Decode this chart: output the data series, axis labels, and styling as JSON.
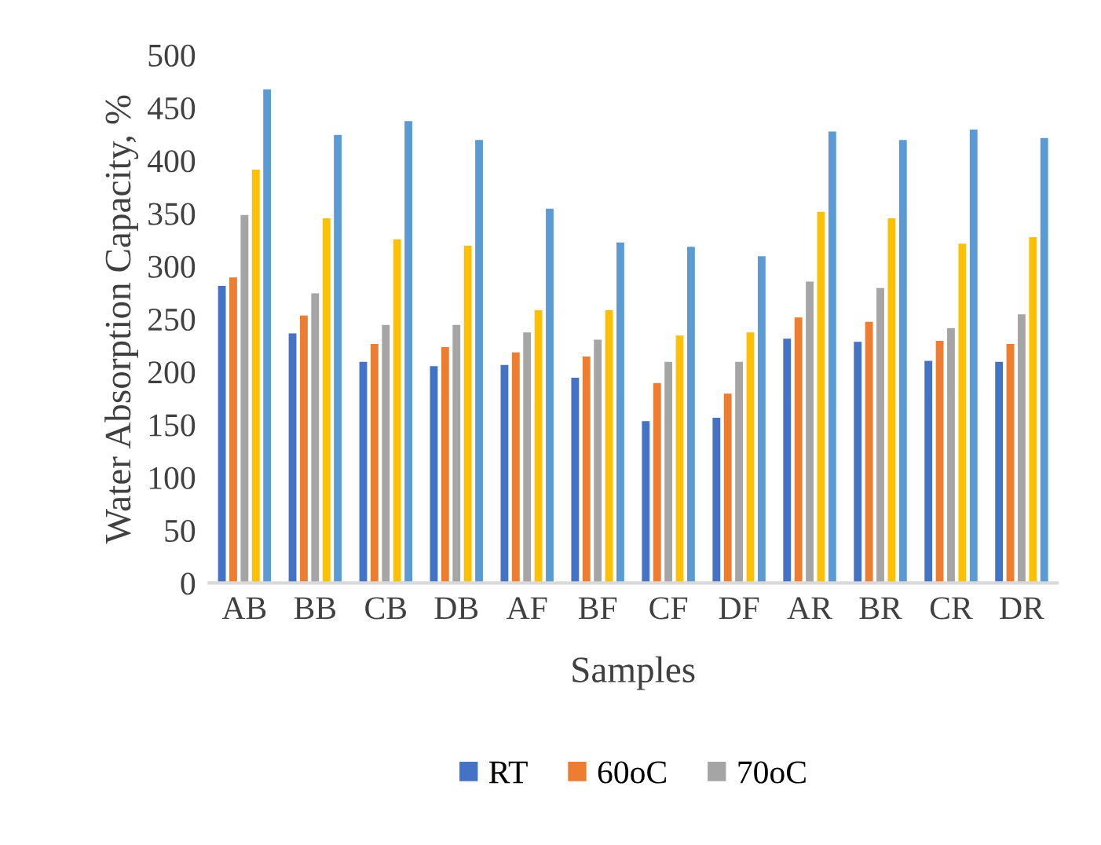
{
  "chart_data": {
    "type": "bar",
    "xlabel": "Samples",
    "ylabel": "Water Absorption Capacity, %",
    "categories": [
      "AB",
      "BB",
      "CB",
      "DB",
      "AF",
      "BF",
      "CF",
      "DF",
      "AR",
      "BR",
      "CR",
      "DR"
    ],
    "series": [
      {
        "name": "RT",
        "color": "#4472c4",
        "values": [
          282,
          237,
          210,
          206,
          207,
          195,
          154,
          157,
          232,
          229,
          211,
          210
        ]
      },
      {
        "name": "60oC",
        "color": "#ed7d31",
        "values": [
          290,
          254,
          227,
          224,
          219,
          215,
          190,
          180,
          252,
          248,
          230,
          227
        ]
      },
      {
        "name": "70oC",
        "color": "#a5a5a5",
        "values": [
          349,
          275,
          245,
          245,
          238,
          231,
          210,
          210,
          286,
          280,
          242,
          255
        ]
      },
      {
        "color": "#ffc000",
        "values": [
          392,
          346,
          326,
          320,
          259,
          259,
          235,
          238,
          352,
          346,
          322,
          328
        ]
      },
      {
        "color": "#5b9bd5",
        "values": [
          468,
          425,
          438,
          420,
          355,
          323,
          319,
          310,
          428,
          420,
          430,
          422
        ]
      }
    ],
    "ylim": [
      0,
      500
    ],
    "yticks": [
      0,
      50,
      100,
      150,
      200,
      250,
      300,
      350,
      400,
      450,
      500
    ],
    "grid": false,
    "legend": "bottom"
  }
}
